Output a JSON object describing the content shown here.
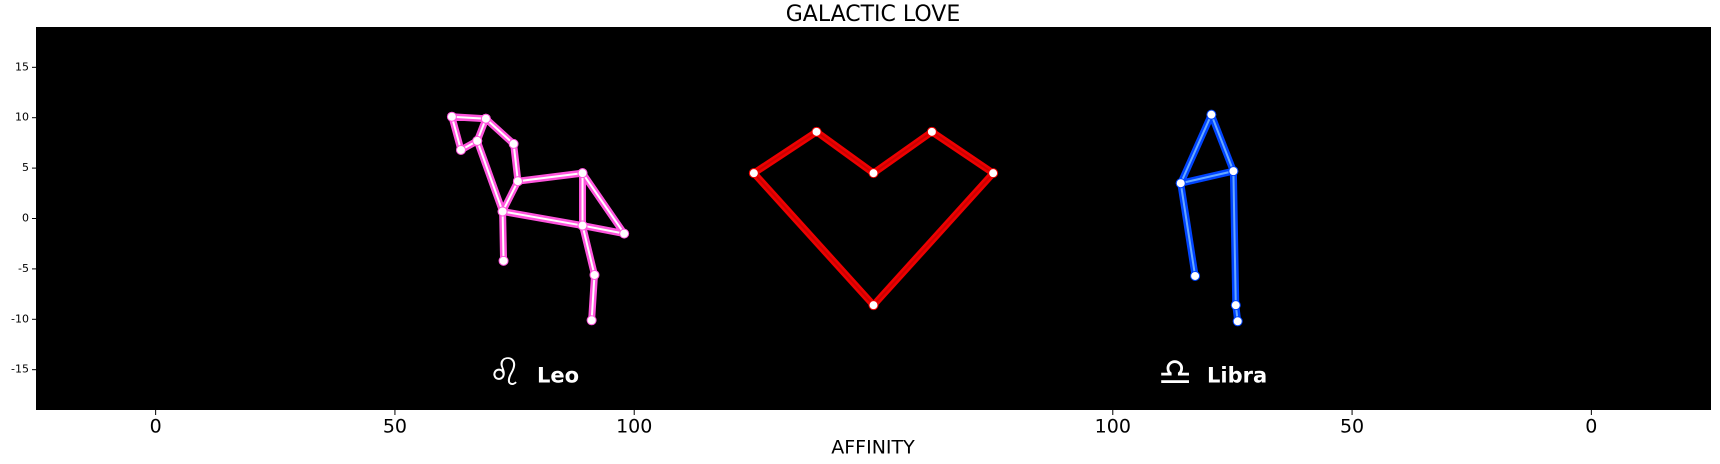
{
  "chart_data": {
    "type": "line",
    "title": "GALACTIC LOVE",
    "xlabel": "AFFINITY",
    "xlim": [
      -25,
      325
    ],
    "ylim": [
      -19,
      19
    ],
    "xticks": [
      0,
      50,
      100,
      {
        "value": 200,
        "label": "100"
      },
      {
        "value": 250,
        "label": "50"
      },
      {
        "value": 300,
        "label": "0"
      }
    ],
    "yticks": [
      -15,
      -10,
      -5,
      0,
      5,
      10,
      15
    ],
    "background": "#000000",
    "grid": false,
    "series": [
      {
        "color": "#ff55dd",
        "inner_color": "#ffffff",
        "x": [
          91.1,
          91.7,
          89.2,
          97.9,
          89.2,
          75.7,
          74.8,
          69.0,
          61.9,
          63.8,
          67.2,
          69.0,
          null,
          67.2,
          72.5,
          89.2,
          89.2,
          null,
          75.7,
          72.5,
          72.7
        ],
        "y": [
          -10.1,
          -5.6,
          -0.7,
          -1.5,
          4.5,
          3.7,
          7.4,
          9.9,
          10.1,
          6.8,
          7.7,
          9.9,
          null,
          7.7,
          0.7,
          -0.7,
          4.5,
          null,
          3.7,
          0.7,
          -4.2
        ]
      },
      {
        "color": "#ee0000",
        "inner_color": "#cc0000",
        "x": [
          125,
          138.1,
          150,
          162.2,
          175,
          150,
          125
        ],
        "y": [
          4.5,
          8.6,
          4.5,
          8.6,
          4.5,
          -8.6,
          4.5
        ]
      },
      {
        "color": "#0044ff",
        "inner_color": "#66aaff",
        "x": [
          217.2,
          214.2,
          220.6,
          225.2,
          214.2,
          null,
          225.2,
          225.7,
          226.1
        ],
        "y": [
          -5.7,
          3.5,
          10.3,
          4.7,
          3.5,
          null,
          4.7,
          -8.6,
          -10.2
        ]
      }
    ],
    "annotations": [
      {
        "symbol": "♌",
        "text": "Leo",
        "x": 73,
        "y": -15.5
      },
      {
        "symbol": "♎",
        "text": "Libra",
        "x": 213,
        "y": -15.5
      }
    ]
  }
}
